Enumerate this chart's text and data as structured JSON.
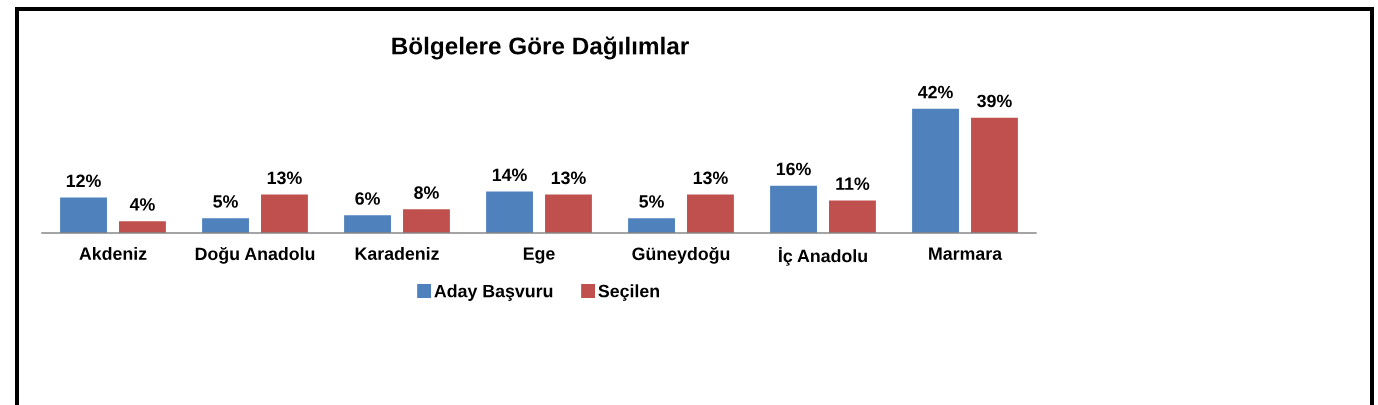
{
  "chart_data": {
    "type": "bar",
    "title": "Bölgelere Göre Dağılımlar",
    "categories": [
      "Akdeniz",
      "Doğu Anadolu",
      "Karadeniz",
      "Ege",
      "Güneydoğu",
      "İç Anadolu",
      "Marmara"
    ],
    "series": [
      {
        "name": "Aday Başvuru",
        "color": "#4f81bd",
        "values": [
          12,
          5,
          6,
          14,
          5,
          16,
          42
        ],
        "value_labels": [
          "12%",
          "5%",
          "6%",
          "14%",
          "5%",
          "16%",
          "42%"
        ]
      },
      {
        "name": "Seçilen",
        "color": "#c0504d",
        "values": [
          4,
          13,
          8,
          13,
          13,
          11,
          39
        ],
        "value_labels": [
          "4%",
          "13%",
          "8%",
          "13%",
          "13%",
          "11%",
          "39%"
        ]
      }
    ],
    "legend": "bottom",
    "tick_labels": "x"
  }
}
